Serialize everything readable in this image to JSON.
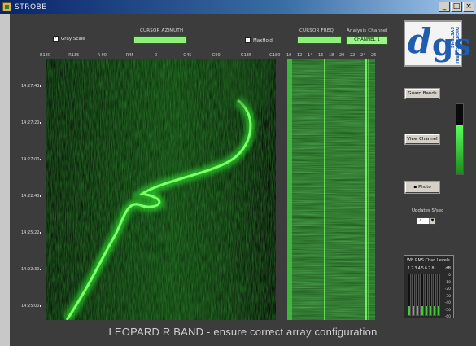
{
  "window": {
    "title": "STROBE",
    "controls": [
      "_",
      "□",
      "×"
    ]
  },
  "top": {
    "gray_scale_label": "Gray Scale",
    "gray_scale_checked": true,
    "cursor_azimuth_label": "CURSOR AZIMUTH",
    "cursor_azimuth_value": "",
    "max_hold_label": "MaxHold",
    "max_hold_checked": false,
    "cursor_freq_label": "CURSOR FREQ",
    "cursor_freq_value": "",
    "analysis_channel_label": "Analysis Channel",
    "analysis_channel_value": "CHANNEL 1"
  },
  "logo": {
    "letters": "dgs",
    "side_text": "DIGITAL GLOBAL SYSTEMS",
    "brand_color": "#1f5db0"
  },
  "azimuth_axis": [
    "R180",
    "R135",
    "R 90",
    "R45",
    "0",
    "G45",
    "G90",
    "G135",
    "G180"
  ],
  "freq_axis": [
    "10",
    "12",
    "14",
    "16",
    "18",
    "20",
    "22",
    "24",
    "26"
  ],
  "time_axis": [
    "14:27:43",
    "14:27:20",
    "14:27:00",
    "14:22:43",
    "14:25:22",
    "14:22:30",
    "14:25:00"
  ],
  "side": {
    "guard_bands_label": "Guard Bands",
    "view_channel_label": "View Channel",
    "photo_label": "Photo",
    "updates_label": "Updates S/sec",
    "updates_value": "4",
    "level_meter_fraction": 0.7
  },
  "channel_panel": {
    "title": "WB RMS Chan Levels",
    "numbers": "12345678",
    "db_label": "dB",
    "scale": [
      "0",
      "-10",
      "-20",
      "-30",
      "-40",
      "-50",
      "-60"
    ],
    "levels": [
      0.22,
      0.22,
      0.22,
      0.22,
      0.22,
      0.22,
      0.22,
      0.22
    ]
  },
  "status": {
    "message": "LEOPARD R BAND - ensure correct array configuration"
  },
  "colors": {
    "signal_green": "#3cff3c",
    "field_green": "#8ef07a",
    "background": "#3c3c3c"
  }
}
